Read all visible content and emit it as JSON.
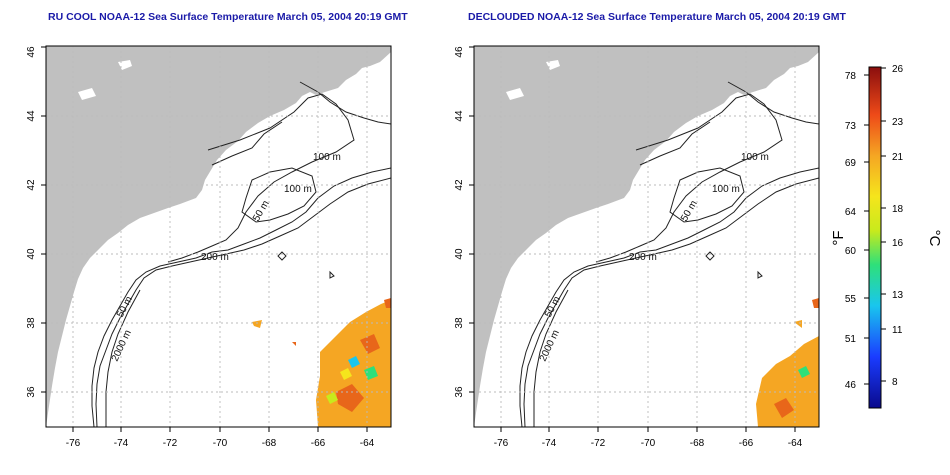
{
  "panels": [
    {
      "title": "RU COOL NOAA-12 Sea Surface Temperature March 05, 2004 20:19 GMT",
      "contour_labels": [
        "100 m",
        "100 m",
        "50 m",
        "200 m",
        "50 m",
        "2000 m"
      ]
    },
    {
      "title": "DECLOUDED NOAA-12 Sea Surface Temperature March 05, 2004 20:19 GMT",
      "contour_labels": [
        "100 m",
        "100 m",
        "50 m",
        "200 m",
        "50 m",
        "2000 m"
      ]
    }
  ],
  "axes": {
    "lon_ticks": [
      "-76",
      "-74",
      "-72",
      "-70",
      "-68",
      "-66",
      "-64"
    ],
    "lat_ticks": [
      "36",
      "38",
      "40",
      "42",
      "44",
      "46"
    ]
  },
  "colorbar": {
    "fahrenheit_label": "°F",
    "celsius_label": "°C",
    "fahrenheit_ticks": [
      "46",
      "51",
      "55",
      "60",
      "64",
      "69",
      "73",
      "78"
    ],
    "celsius_ticks": [
      "8",
      "11",
      "13",
      "16",
      "18",
      "21",
      "23",
      "26"
    ]
  },
  "colors": {
    "land": "#c0c0c0",
    "contour": "#222222",
    "grid": "#bbbbbb",
    "title": "#1a1aa8",
    "sst_warm": "#f5a623",
    "sst_hot": "#e8661a"
  }
}
